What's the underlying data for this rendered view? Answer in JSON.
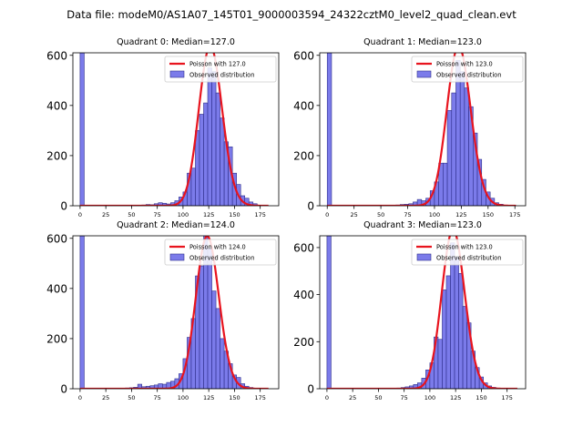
{
  "figure": {
    "suptitle": "Data file: modeM0/AS1A07_145T01_9000003594_24322cztM0_level2_quad_clean.evt"
  },
  "colors": {
    "bar_fill": "#7b7bea",
    "bar_edge": "#2d2d8a",
    "fit_line": "#e8141e",
    "axis": "#000000",
    "background": "#ffffff"
  },
  "chart_data": [
    {
      "type": "bar",
      "title": "Quadrant 0: Median=127.0",
      "xlabel": "",
      "ylabel": "",
      "xlim": [
        -7,
        193
      ],
      "ylim": [
        0,
        610
      ],
      "xticks": [
        0,
        25,
        50,
        75,
        100,
        125,
        150,
        175
      ],
      "yticks": [
        0,
        200,
        400,
        600
      ],
      "bin_width": 4,
      "zero_bar": {
        "x": 0,
        "height": 610
      },
      "bins": [
        {
          "x": 60,
          "y": 3
        },
        {
          "x": 64,
          "y": 5
        },
        {
          "x": 68,
          "y": 4
        },
        {
          "x": 72,
          "y": 8
        },
        {
          "x": 76,
          "y": 12
        },
        {
          "x": 80,
          "y": 10
        },
        {
          "x": 84,
          "y": 7
        },
        {
          "x": 88,
          "y": 12
        },
        {
          "x": 92,
          "y": 20
        },
        {
          "x": 96,
          "y": 35
        },
        {
          "x": 100,
          "y": 55
        },
        {
          "x": 104,
          "y": 130
        },
        {
          "x": 108,
          "y": 150
        },
        {
          "x": 112,
          "y": 300
        },
        {
          "x": 116,
          "y": 365
        },
        {
          "x": 120,
          "y": 410
        },
        {
          "x": 124,
          "y": 550
        },
        {
          "x": 128,
          "y": 535
        },
        {
          "x": 132,
          "y": 450
        },
        {
          "x": 136,
          "y": 350
        },
        {
          "x": 140,
          "y": 255
        },
        {
          "x": 144,
          "y": 235
        },
        {
          "x": 148,
          "y": 130
        },
        {
          "x": 152,
          "y": 85
        },
        {
          "x": 156,
          "y": 40
        },
        {
          "x": 160,
          "y": 30
        },
        {
          "x": 164,
          "y": 15
        },
        {
          "x": 168,
          "y": 8
        }
      ],
      "fit": {
        "lambda": 127.0,
        "amplitude": 18000,
        "x_range": [
          0,
          183
        ]
      },
      "legend": {
        "position": "top-right",
        "entries": [
          "Poisson with 127.0",
          "Observed distribution"
        ]
      }
    },
    {
      "type": "bar",
      "title": "Quadrant 1: Median=123.0",
      "xlabel": "",
      "ylabel": "",
      "xlim": [
        -7,
        185
      ],
      "ylim": [
        0,
        610
      ],
      "xticks": [
        0,
        25,
        50,
        75,
        100,
        125,
        150,
        175
      ],
      "yticks": [
        0,
        200,
        400,
        600
      ],
      "bin_width": 4,
      "zero_bar": {
        "x": 0,
        "height": 610
      },
      "bins": [
        {
          "x": 64,
          "y": 3
        },
        {
          "x": 68,
          "y": 5
        },
        {
          "x": 72,
          "y": 6
        },
        {
          "x": 76,
          "y": 8
        },
        {
          "x": 80,
          "y": 15
        },
        {
          "x": 84,
          "y": 25
        },
        {
          "x": 88,
          "y": 20
        },
        {
          "x": 92,
          "y": 30
        },
        {
          "x": 96,
          "y": 60
        },
        {
          "x": 100,
          "y": 95
        },
        {
          "x": 104,
          "y": 170
        },
        {
          "x": 108,
          "y": 170
        },
        {
          "x": 112,
          "y": 380
        },
        {
          "x": 116,
          "y": 450
        },
        {
          "x": 120,
          "y": 580
        },
        {
          "x": 124,
          "y": 535
        },
        {
          "x": 128,
          "y": 470
        },
        {
          "x": 132,
          "y": 395
        },
        {
          "x": 136,
          "y": 290
        },
        {
          "x": 140,
          "y": 185
        },
        {
          "x": 144,
          "y": 105
        },
        {
          "x": 148,
          "y": 55
        },
        {
          "x": 152,
          "y": 30
        },
        {
          "x": 156,
          "y": 12
        },
        {
          "x": 160,
          "y": 6
        }
      ],
      "fit": {
        "lambda": 123.0,
        "amplitude": 17700,
        "x_range": [
          0,
          176
        ]
      },
      "legend": {
        "position": "top-right",
        "entries": [
          "Poisson with 123.0",
          "Observed distribution"
        ]
      }
    },
    {
      "type": "bar",
      "title": "Quadrant 2: Median=124.0",
      "xlabel": "",
      "ylabel": "",
      "xlim": [
        -7,
        193
      ],
      "ylim": [
        0,
        610
      ],
      "xticks": [
        0,
        25,
        50,
        75,
        100,
        125,
        150,
        175
      ],
      "yticks": [
        0,
        200,
        400,
        600
      ],
      "bin_width": 4,
      "zero_bar": {
        "x": 0,
        "height": 610
      },
      "bins": [
        {
          "x": 44,
          "y": 3
        },
        {
          "x": 48,
          "y": 4
        },
        {
          "x": 52,
          "y": 6
        },
        {
          "x": 56,
          "y": 18
        },
        {
          "x": 60,
          "y": 8
        },
        {
          "x": 64,
          "y": 10
        },
        {
          "x": 68,
          "y": 12
        },
        {
          "x": 72,
          "y": 15
        },
        {
          "x": 76,
          "y": 20
        },
        {
          "x": 80,
          "y": 18
        },
        {
          "x": 84,
          "y": 25
        },
        {
          "x": 88,
          "y": 30
        },
        {
          "x": 92,
          "y": 40
        },
        {
          "x": 96,
          "y": 60
        },
        {
          "x": 100,
          "y": 120
        },
        {
          "x": 104,
          "y": 205
        },
        {
          "x": 108,
          "y": 280
        },
        {
          "x": 112,
          "y": 450
        },
        {
          "x": 116,
          "y": 490
        },
        {
          "x": 120,
          "y": 610
        },
        {
          "x": 124,
          "y": 560
        },
        {
          "x": 128,
          "y": 390
        },
        {
          "x": 132,
          "y": 320
        },
        {
          "x": 136,
          "y": 200
        },
        {
          "x": 140,
          "y": 150
        },
        {
          "x": 144,
          "y": 100
        },
        {
          "x": 148,
          "y": 55
        },
        {
          "x": 152,
          "y": 45
        },
        {
          "x": 156,
          "y": 20
        },
        {
          "x": 160,
          "y": 10
        },
        {
          "x": 164,
          "y": 5
        }
      ],
      "fit": {
        "lambda": 124.0,
        "amplitude": 17000,
        "x_range": [
          0,
          183
        ]
      },
      "legend": {
        "position": "top-right",
        "entries": [
          "Poisson with 124.0",
          "Observed distribution"
        ]
      }
    },
    {
      "type": "bar",
      "title": "Quadrant 3: Median=123.0",
      "xlabel": "",
      "ylabel": "",
      "xlim": [
        -7,
        193
      ],
      "ylim": [
        0,
        650
      ],
      "xticks": [
        0,
        25,
        50,
        75,
        100,
        125,
        150,
        175
      ],
      "yticks": [
        0,
        200,
        400,
        600
      ],
      "bin_width": 4,
      "zero_bar": {
        "x": 0,
        "height": 650
      },
      "bins": [
        {
          "x": 68,
          "y": 3
        },
        {
          "x": 72,
          "y": 5
        },
        {
          "x": 76,
          "y": 8
        },
        {
          "x": 80,
          "y": 12
        },
        {
          "x": 84,
          "y": 18
        },
        {
          "x": 88,
          "y": 25
        },
        {
          "x": 92,
          "y": 45
        },
        {
          "x": 96,
          "y": 80
        },
        {
          "x": 100,
          "y": 110
        },
        {
          "x": 104,
          "y": 220
        },
        {
          "x": 108,
          "y": 210
        },
        {
          "x": 112,
          "y": 420
        },
        {
          "x": 116,
          "y": 480
        },
        {
          "x": 120,
          "y": 620
        },
        {
          "x": 124,
          "y": 560
        },
        {
          "x": 128,
          "y": 490
        },
        {
          "x": 132,
          "y": 350
        },
        {
          "x": 136,
          "y": 280
        },
        {
          "x": 140,
          "y": 160
        },
        {
          "x": 144,
          "y": 90
        },
        {
          "x": 148,
          "y": 50
        },
        {
          "x": 152,
          "y": 25
        },
        {
          "x": 156,
          "y": 12
        },
        {
          "x": 160,
          "y": 6
        }
      ],
      "fit": {
        "lambda": 123.0,
        "amplitude": 18800,
        "x_range": [
          0,
          185
        ]
      },
      "legend": {
        "position": "top-right",
        "entries": [
          "Poisson with 123.0",
          "Observed distribution"
        ]
      }
    }
  ]
}
